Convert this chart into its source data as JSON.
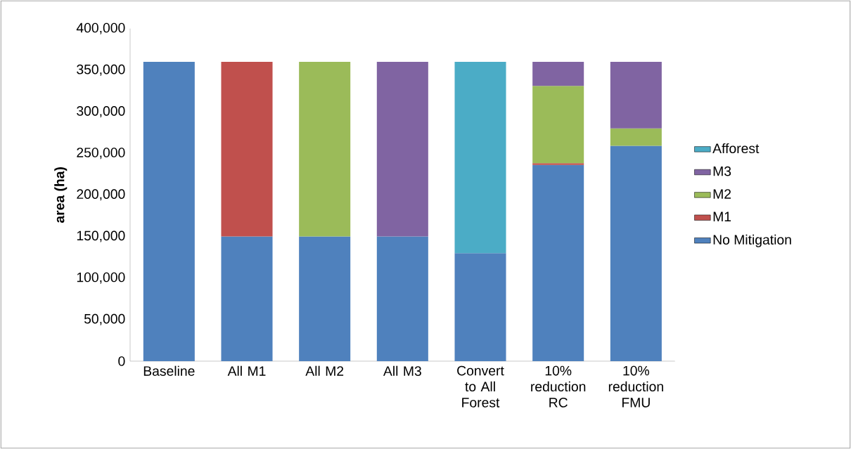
{
  "chart_data": {
    "type": "bar",
    "stacked": true,
    "ylabel": "area (ha)",
    "categories": [
      "Baseline",
      "All M1",
      "All M2",
      "All M3",
      "Convert to All Forest",
      "10% reduction RC",
      "10% reduction FMU"
    ],
    "series": [
      {
        "name": "No Mitigation",
        "color": "#4f81bd",
        "values": [
          360000,
          150000,
          150000,
          150000,
          130000,
          236000,
          259000
        ]
      },
      {
        "name": "M1",
        "color": "#c0504d",
        "values": [
          null,
          210000,
          null,
          null,
          null,
          2000,
          null
        ]
      },
      {
        "name": "M2",
        "color": "#9bbb59",
        "values": [
          null,
          null,
          210000,
          null,
          null,
          93000,
          21000
        ]
      },
      {
        "name": "M3",
        "color": "#8064a2",
        "values": [
          null,
          null,
          null,
          210000,
          null,
          29000,
          80000
        ]
      },
      {
        "name": "Afforest",
        "color": "#4bacc6",
        "values": [
          null,
          null,
          null,
          null,
          230000,
          null,
          null
        ]
      }
    ],
    "ylim": [
      0,
      400000
    ],
    "yticks": [
      0,
      {
        "value": 50000,
        "label": "50,000"
      },
      {
        "value": 100000,
        "label": "100,000"
      },
      {
        "value": 150000,
        "label": "150,000"
      },
      {
        "value": 200000,
        "label": "200,000"
      },
      {
        "value": 250000,
        "label": "250,000"
      },
      {
        "value": 300000,
        "label": "300,000"
      },
      {
        "value": 350000,
        "label": "350,000"
      },
      {
        "value": 400000,
        "label": "400,000"
      }
    ],
    "grid": false,
    "legend": "right"
  }
}
